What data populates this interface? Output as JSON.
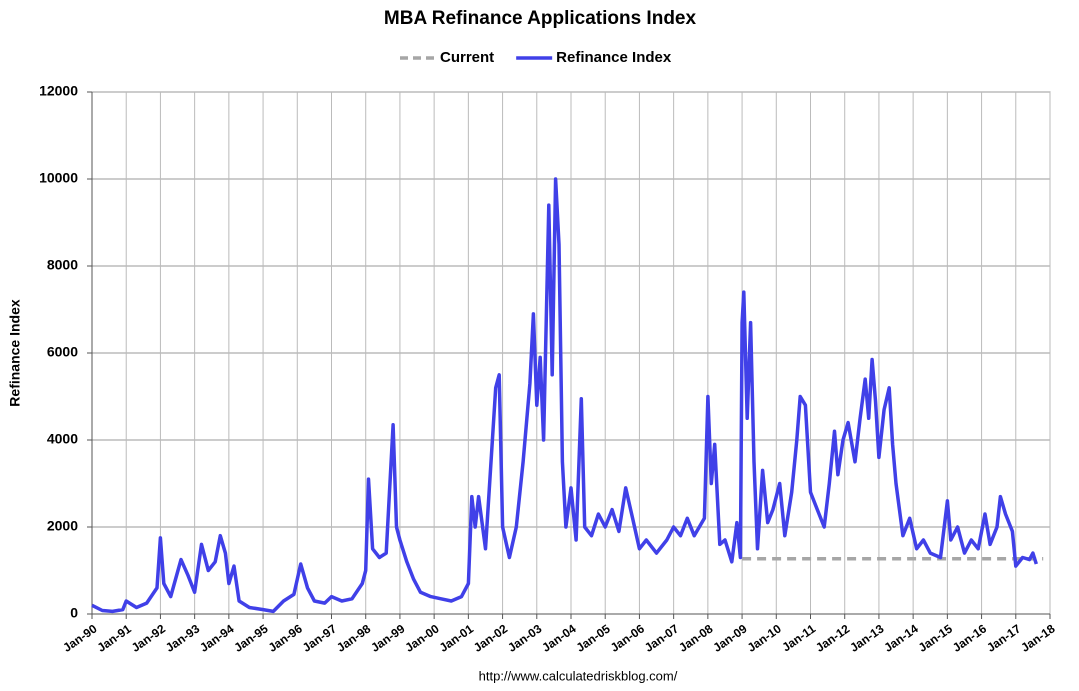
{
  "chart_data": {
    "type": "line",
    "title": "MBA Refinance Applications Index",
    "y_label": "Refinance Index",
    "source": "http://www.calculatedriskblog.com/",
    "legend": "top",
    "grid": true,
    "xlim": [
      1990,
      2018
    ],
    "ylim": [
      0,
      12000
    ],
    "yticks": [
      0,
      2000,
      4000,
      6000,
      8000,
      10000,
      12000
    ],
    "xticks": [
      {
        "value": 1990,
        "label": "Jan-90"
      },
      {
        "value": 1991,
        "label": "Jan-91"
      },
      {
        "value": 1992,
        "label": "Jan-92"
      },
      {
        "value": 1993,
        "label": "Jan-93"
      },
      {
        "value": 1994,
        "label": "Jan-94"
      },
      {
        "value": 1995,
        "label": "Jan-95"
      },
      {
        "value": 1996,
        "label": "Jan-96"
      },
      {
        "value": 1997,
        "label": "Jan-97"
      },
      {
        "value": 1998,
        "label": "Jan-98"
      },
      {
        "value": 1999,
        "label": "Jan-99"
      },
      {
        "value": 2000,
        "label": "Jan-00"
      },
      {
        "value": 2001,
        "label": "Jan-01"
      },
      {
        "value": 2002,
        "label": "Jan-02"
      },
      {
        "value": 2003,
        "label": "Jan-03"
      },
      {
        "value": 2004,
        "label": "Jan-04"
      },
      {
        "value": 2005,
        "label": "Jan-05"
      },
      {
        "value": 2006,
        "label": "Jan-06"
      },
      {
        "value": 2007,
        "label": "Jan-07"
      },
      {
        "value": 2008,
        "label": "Jan-08"
      },
      {
        "value": 2009,
        "label": "Jan-09"
      },
      {
        "value": 2010,
        "label": "Jan-10"
      },
      {
        "value": 2011,
        "label": "Jan-11"
      },
      {
        "value": 2012,
        "label": "Jan-12"
      },
      {
        "value": 2013,
        "label": "Jan-13"
      },
      {
        "value": 2014,
        "label": "Jan-14"
      },
      {
        "value": 2015,
        "label": "Jan-15"
      },
      {
        "value": 2016,
        "label": "Jan-16"
      },
      {
        "value": 2017,
        "label": "Jan-17"
      },
      {
        "value": 2018,
        "label": "Jan-18"
      }
    ],
    "series": [
      {
        "name": "Current",
        "color": "#a6a6a6",
        "dashed": true,
        "x": [
          2009,
          2017.8
        ],
        "values": [
          1270,
          1270
        ]
      },
      {
        "name": "Refinance Index",
        "color": "#4040e8",
        "dashed": false,
        "x": [
          1990.0,
          1990.3,
          1990.6,
          1990.9,
          1991.0,
          1991.3,
          1991.6,
          1991.9,
          1992.0,
          1992.1,
          1992.3,
          1992.6,
          1992.8,
          1993.0,
          1993.2,
          1993.4,
          1993.6,
          1993.75,
          1993.9,
          1994.0,
          1994.15,
          1994.3,
          1994.6,
          1995.0,
          1995.3,
          1995.6,
          1995.9,
          1996.1,
          1996.3,
          1996.5,
          1996.8,
          1997.0,
          1997.3,
          1997.6,
          1997.9,
          1998.0,
          1998.08,
          1998.2,
          1998.4,
          1998.6,
          1998.8,
          1998.9,
          1999.0,
          1999.2,
          1999.4,
          1999.6,
          1999.9,
          2000.2,
          2000.5,
          2000.8,
          2001.0,
          2001.1,
          2001.2,
          2001.3,
          2001.5,
          2001.8,
          2001.9,
          2002.0,
          2002.2,
          2002.4,
          2002.6,
          2002.8,
          2002.9,
          2003.0,
          2003.1,
          2003.2,
          2003.35,
          2003.45,
          2003.55,
          2003.65,
          2003.75,
          2003.85,
          2004.0,
          2004.15,
          2004.3,
          2004.4,
          2004.6,
          2004.8,
          2005.0,
          2005.2,
          2005.4,
          2005.6,
          2005.8,
          2006.0,
          2006.2,
          2006.5,
          2006.8,
          2007.0,
          2007.2,
          2007.4,
          2007.6,
          2007.9,
          2008.0,
          2008.1,
          2008.2,
          2008.35,
          2008.5,
          2008.7,
          2008.85,
          2008.95,
          2009.0,
          2009.05,
          2009.15,
          2009.25,
          2009.35,
          2009.45,
          2009.6,
          2009.75,
          2009.9,
          2010.1,
          2010.25,
          2010.45,
          2010.6,
          2010.7,
          2010.85,
          2011.0,
          2011.2,
          2011.4,
          2011.55,
          2011.7,
          2011.8,
          2011.95,
          2012.1,
          2012.3,
          2012.45,
          2012.6,
          2012.7,
          2012.8,
          2012.9,
          2013.0,
          2013.15,
          2013.3,
          2013.4,
          2013.5,
          2013.7,
          2013.9,
          2014.1,
          2014.3,
          2014.5,
          2014.8,
          2015.0,
          2015.1,
          2015.3,
          2015.5,
          2015.7,
          2015.9,
          2016.1,
          2016.25,
          2016.45,
          2016.55,
          2016.7,
          2016.9,
          2017.0,
          2017.2,
          2017.4,
          2017.5,
          2017.6
        ],
        "values": [
          200,
          80,
          60,
          100,
          300,
          150,
          250,
          600,
          1750,
          700,
          400,
          1250,
          900,
          500,
          1600,
          1000,
          1200,
          1800,
          1400,
          700,
          1100,
          300,
          150,
          100,
          60,
          300,
          450,
          1150,
          600,
          300,
          250,
          400,
          300,
          350,
          700,
          1000,
          3100,
          1500,
          1300,
          1400,
          4350,
          2000,
          1700,
          1200,
          800,
          500,
          400,
          350,
          300,
          400,
          700,
          2700,
          2000,
          2700,
          1500,
          5200,
          5500,
          2000,
          1300,
          2000,
          3500,
          5300,
          6900,
          4800,
          5900,
          4000,
          9400,
          5500,
          10000,
          8500,
          3500,
          2000,
          2900,
          1700,
          4950,
          2000,
          1800,
          2300,
          2000,
          2400,
          1900,
          2900,
          2200,
          1500,
          1700,
          1400,
          1700,
          2000,
          1800,
          2200,
          1800,
          2200,
          5000,
          3000,
          3900,
          1600,
          1700,
          1200,
          2100,
          1300,
          6700,
          7400,
          4500,
          6700,
          3500,
          1500,
          3300,
          2100,
          2400,
          3000,
          1800,
          2800,
          4000,
          5000,
          4800,
          2800,
          2400,
          2000,
          3000,
          4200,
          3200,
          4000,
          4400,
          3500,
          4500,
          5400,
          4500,
          5850,
          4900,
          3600,
          4700,
          5200,
          3900,
          3000,
          1800,
          2200,
          1500,
          1700,
          1400,
          1300,
          2600,
          1700,
          2000,
          1400,
          1700,
          1500,
          2300,
          1600,
          2000,
          2700,
          2300,
          1900,
          1100,
          1300,
          1250,
          1400,
          1150
        ]
      }
    ]
  }
}
